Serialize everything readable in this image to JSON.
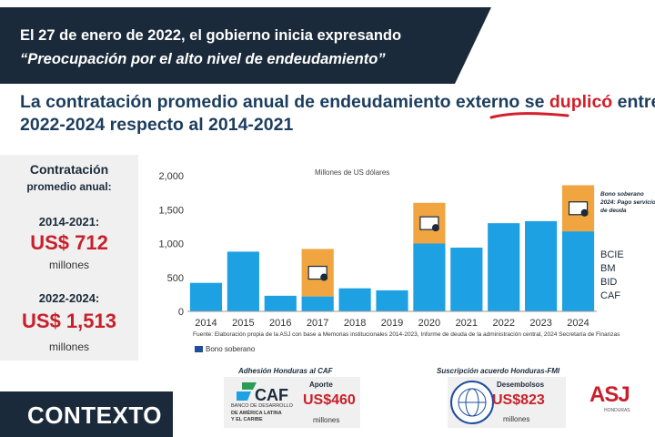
{
  "banner": {
    "line1": "El 27 de enero de 2022, el gobierno inicia expresando",
    "line2": "“Preocupación por el alto nivel de endeudamiento”"
  },
  "headline": {
    "part1": "La contratación promedio anual de endeudamiento externo se ",
    "highlight": "duplicó",
    "part2": " entre",
    "line2": "2022-2024 respecto al 2014-2021"
  },
  "left_panel": {
    "title1": "Contratación",
    "title2": "promedio anual:",
    "period1": "2014-2021:",
    "value1": "US$ 712",
    "unit1": "millones",
    "period2": "2022-2024:",
    "value2": "US$ 1,513",
    "unit2": "millones"
  },
  "chart_data": {
    "type": "bar",
    "title": "Millones de US dólares",
    "categories": [
      "2014",
      "2015",
      "2016",
      "2017",
      "2018",
      "2019",
      "2020",
      "2021",
      "2022",
      "2023",
      "2024"
    ],
    "series": [
      {
        "name": "BCIE / BM / BID / CAF",
        "values": [
          420,
          880,
          230,
          220,
          340,
          310,
          1000,
          940,
          1300,
          1330,
          1180
        ]
      },
      {
        "name": "Bono soberano",
        "values": [
          0,
          0,
          0,
          700,
          0,
          0,
          600,
          0,
          0,
          0,
          680
        ]
      }
    ],
    "yticks": [
      "0",
      "500",
      "1,000",
      "1,500",
      "2,000"
    ],
    "ylim": [
      0,
      2000
    ],
    "right_labels": [
      "BCIE",
      "BM",
      "BID",
      "CAF"
    ],
    "annotation": "Bono soberano 2024: Pago servicio de deuda",
    "source_note": "Fuente: Elaboración propia de la ASJ con base a Memorias institucionales 2014-2023, Informe de deuda de la administración central, 2024 Secretaría de Finanzas",
    "legend": "Bono soberano",
    "colors": {
      "base": "#1da1e2",
      "bond": "#f0a540",
      "legend_swatch": "#1e4d9b"
    }
  },
  "cards": {
    "caf": {
      "title": "Adhesión Honduras al CAF",
      "logo": "CAF",
      "sub1": "BANCO DE DESARROLLO",
      "sub2": "DE AMÉRICA LATINA",
      "sub3": "Y EL CARIBE",
      "label": "Aporte",
      "value": "US$460",
      "unit": "millones"
    },
    "imf": {
      "title": "Suscripción acuerdo Honduras-FMI",
      "label": "Desembolsos",
      "value": "US$823",
      "unit": "millones",
      "seal_icon": "imf-seal-icon"
    }
  },
  "contexto": "CONTEXTO",
  "asj": {
    "logo": "ASJ",
    "sub": "HONDURAS"
  }
}
